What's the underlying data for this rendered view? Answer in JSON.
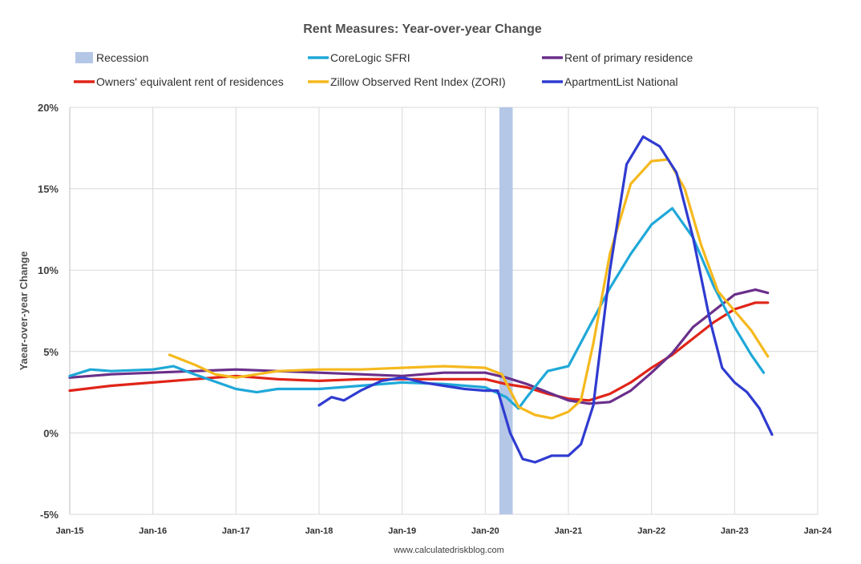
{
  "chart_data": {
    "type": "line",
    "title": "Rent Measures: Year-over-year Change",
    "ylabel": "Yaear-over-year Change",
    "xlabel": "",
    "source": "www.calculatedriskblog.com",
    "ylim": [
      -5,
      20
    ],
    "y_ticks": [
      "-5%",
      "0%",
      "5%",
      "10%",
      "15%",
      "20%"
    ],
    "y_tick_values": [
      -5,
      0,
      5,
      10,
      15,
      20
    ],
    "x_range": [
      2015.0,
      2024.0
    ],
    "x_ticks": [
      "Jan-15",
      "Jan-16",
      "Jan-17",
      "Jan-18",
      "Jan-19",
      "Jan-20",
      "Jan-21",
      "Jan-22",
      "Jan-23",
      "Jan-24"
    ],
    "grid": true,
    "legend_placement": "top",
    "recession": {
      "name": "Recession",
      "start": 2020.17,
      "end": 2020.33,
      "color": "#b4c7e7"
    },
    "legend": [
      {
        "name": "Recession",
        "kind": "band",
        "color": "#b4c7e7"
      },
      {
        "name": "CoreLogic SFRI",
        "kind": "line",
        "color": "#1fa8d8"
      },
      {
        "name": "Rent of primary residence",
        "kind": "line",
        "color": "#6a2f8a"
      },
      {
        "name": "Owners' equivalent rent of residences",
        "kind": "line",
        "color": "#e02418"
      },
      {
        "name": "Zillow Observed Rent Index (ZORI)",
        "kind": "line",
        "color": "#f5b91e"
      },
      {
        "name": "ApartmentList National",
        "kind": "line",
        "color": "#2f3bd0"
      }
    ],
    "series": [
      {
        "name": "Owners' equivalent rent of residences",
        "color": "#e02418",
        "x": [
          2015.0,
          2015.5,
          2016.0,
          2016.5,
          2017.0,
          2017.5,
          2018.0,
          2018.5,
          2019.0,
          2019.5,
          2020.0,
          2020.25,
          2020.5,
          2020.75,
          2021.0,
          2021.25,
          2021.5,
          2021.75,
          2022.0,
          2022.25,
          2022.5,
          2022.75,
          2023.0,
          2023.25,
          2023.4
        ],
        "values": [
          2.6,
          2.9,
          3.1,
          3.3,
          3.5,
          3.3,
          3.2,
          3.3,
          3.3,
          3.3,
          3.3,
          3.0,
          2.8,
          2.4,
          2.1,
          2.0,
          2.4,
          3.1,
          4.0,
          4.8,
          5.8,
          6.8,
          7.6,
          8.0,
          8.0
        ]
      },
      {
        "name": "Rent of primary residence",
        "color": "#6a2f8a",
        "x": [
          2015.0,
          2015.5,
          2016.0,
          2016.5,
          2017.0,
          2017.5,
          2018.0,
          2018.5,
          2019.0,
          2019.5,
          2020.0,
          2020.25,
          2020.5,
          2020.75,
          2021.0,
          2021.25,
          2021.5,
          2021.75,
          2022.0,
          2022.25,
          2022.5,
          2022.75,
          2023.0,
          2023.25,
          2023.4
        ],
        "values": [
          3.4,
          3.6,
          3.7,
          3.8,
          3.9,
          3.8,
          3.7,
          3.6,
          3.5,
          3.7,
          3.7,
          3.4,
          3.0,
          2.5,
          2.0,
          1.8,
          1.9,
          2.6,
          3.7,
          4.9,
          6.5,
          7.5,
          8.5,
          8.8,
          8.6
        ]
      },
      {
        "name": "CoreLogic SFRI",
        "color": "#1fa8d8",
        "x": [
          2015.0,
          2015.25,
          2015.5,
          2016.0,
          2016.25,
          2016.5,
          2017.0,
          2017.25,
          2017.5,
          2018.0,
          2018.5,
          2019.0,
          2019.5,
          2020.0,
          2020.25,
          2020.4,
          2020.5,
          2020.75,
          2021.0,
          2021.25,
          2021.5,
          2021.75,
          2022.0,
          2022.25,
          2022.5,
          2022.75,
          2023.0,
          2023.2,
          2023.35
        ],
        "values": [
          3.5,
          3.9,
          3.8,
          3.9,
          4.1,
          3.6,
          2.7,
          2.5,
          2.7,
          2.7,
          2.9,
          3.1,
          3.0,
          2.8,
          2.2,
          1.5,
          2.2,
          3.8,
          4.1,
          6.5,
          8.9,
          11.0,
          12.8,
          13.8,
          12.0,
          9.0,
          6.5,
          4.8,
          3.7
        ]
      },
      {
        "name": "Zillow Observed Rent Index (ZORI)",
        "color": "#f5b91e",
        "x": [
          2016.2,
          2016.5,
          2016.75,
          2017.0,
          2017.5,
          2018.0,
          2018.5,
          2019.0,
          2019.5,
          2020.0,
          2020.2,
          2020.4,
          2020.6,
          2020.8,
          2021.0,
          2021.15,
          2021.3,
          2021.5,
          2021.75,
          2022.0,
          2022.2,
          2022.4,
          2022.6,
          2022.8,
          2023.0,
          2023.2,
          2023.4
        ],
        "values": [
          4.8,
          4.2,
          3.6,
          3.4,
          3.8,
          3.9,
          3.9,
          4.0,
          4.1,
          4.0,
          3.6,
          1.6,
          1.1,
          0.9,
          1.3,
          2.0,
          5.5,
          11.0,
          15.3,
          16.7,
          16.8,
          15.0,
          11.5,
          8.7,
          7.5,
          6.3,
          4.7
        ]
      },
      {
        "name": "ApartmentList National",
        "color": "#2f3bd0",
        "x": [
          2018.0,
          2018.15,
          2018.3,
          2018.5,
          2018.75,
          2019.0,
          2019.25,
          2019.5,
          2019.75,
          2020.0,
          2020.15,
          2020.3,
          2020.45,
          2020.6,
          2020.8,
          2021.0,
          2021.15,
          2021.3,
          2021.5,
          2021.7,
          2021.9,
          2022.1,
          2022.3,
          2022.5,
          2022.7,
          2022.85,
          2023.0,
          2023.15,
          2023.3,
          2023.45
        ],
        "values": [
          1.7,
          2.2,
          2.0,
          2.6,
          3.2,
          3.4,
          3.1,
          2.9,
          2.7,
          2.6,
          2.6,
          0.0,
          -1.6,
          -1.8,
          -1.4,
          -1.4,
          -0.7,
          1.7,
          10.0,
          16.5,
          18.2,
          17.6,
          16.0,
          12.0,
          7.0,
          4.0,
          3.1,
          2.5,
          1.5,
          -0.1
        ]
      }
    ]
  }
}
